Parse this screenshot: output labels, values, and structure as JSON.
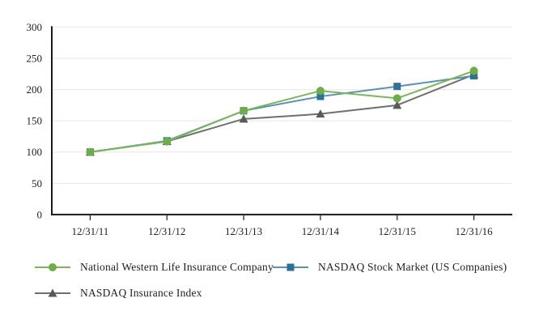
{
  "chart_data": {
    "type": "line",
    "title": "",
    "xlabel": "",
    "ylabel": "",
    "categories": [
      "12/31/11",
      "12/31/12",
      "12/31/13",
      "12/31/14",
      "12/31/15",
      "12/31/16"
    ],
    "series": [
      {
        "name": "National Western Life Insurance Company",
        "marker": "circle",
        "marker_color": "#6fae46",
        "line_color": "#7cb659",
        "values": [
          100,
          117,
          166,
          198,
          186,
          230
        ]
      },
      {
        "name": "NASDAQ Stock Market (US Companies)",
        "marker": "square",
        "marker_color": "#2d7196",
        "line_color": "#5a91b4",
        "values": [
          100,
          118,
          166,
          189,
          205,
          222
        ]
      },
      {
        "name": "NASDAQ Insurance Index",
        "marker": "triangle",
        "marker_color": "#595959",
        "line_color": "#6f6f6f",
        "values": [
          100,
          117,
          153,
          161,
          175,
          224
        ]
      }
    ],
    "ylim": [
      0,
      300
    ],
    "ytick_step": 50,
    "yticks": [
      "0",
      "50",
      "100",
      "150",
      "200",
      "250",
      "300"
    ],
    "grid": true,
    "legend_position": "bottom"
  },
  "colors": {
    "axis": "#1a1a1a",
    "gridline": "#e7e7e7",
    "tick_text": "#1f1f1f",
    "background": "#ffffff"
  }
}
